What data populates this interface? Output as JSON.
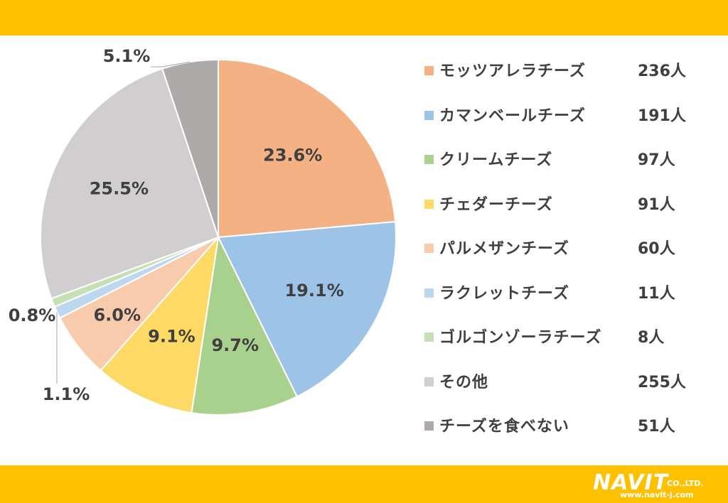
{
  "chart_data": {
    "type": "pie",
    "title": "",
    "start_angle_deg": 0,
    "direction": "clockwise",
    "categories": [
      "モッツアレラチーズ",
      "カマンベールチーズ",
      "クリームチーズ",
      "チェダーチーズ",
      "パルメザンチーズ",
      "ラクレットチーズ",
      "ゴルゴンゾーラチーズ",
      "その他",
      "チーズを食べない"
    ],
    "counts": [
      236,
      191,
      97,
      91,
      60,
      11,
      8,
      255,
      51
    ],
    "count_labels": [
      "236人",
      "191人",
      "97人",
      "91人",
      "60人",
      "11人",
      "8人",
      "255人",
      "51人"
    ],
    "values": [
      23.6,
      19.1,
      9.7,
      9.1,
      6.0,
      1.1,
      0.8,
      25.5,
      5.1
    ],
    "value_labels": [
      "23.6%",
      "19.1%",
      "9.7%",
      "9.1%",
      "6.0%",
      "1.1%",
      "0.8%",
      "25.5%",
      "5.1%"
    ],
    "colors": [
      "#F4B183",
      "#9DC3E6",
      "#A9D18E",
      "#FFD966",
      "#F8CBAD",
      "#BDD7EE",
      "#C5E0B4",
      "#D0CECE",
      "#AEAAAA"
    ],
    "legend_position": "right"
  },
  "brand": {
    "logo": "NAVIT",
    "company_suffix": "CO.,LTD.",
    "url": "www.navit-j.com"
  },
  "colors": {
    "band": "#FFC000",
    "text": "#3f3f3f"
  }
}
